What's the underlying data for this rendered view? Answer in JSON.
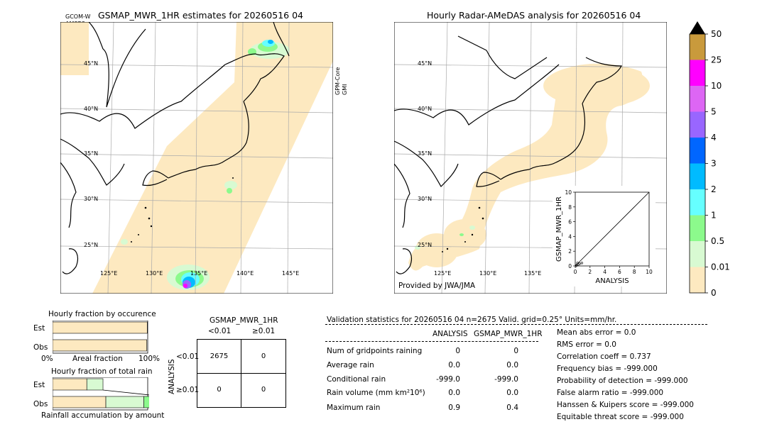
{
  "left_map": {
    "title": "GSMAP_MWR_1HR estimates for 20260516 04",
    "sat_top": "GCOM-W",
    "sat_bottom": "AMSR2",
    "side_top": "GPM-Core",
    "side_bottom": "GMI",
    "lat_labels": [
      "45°N",
      "40°N",
      "35°N",
      "30°N",
      "25°N"
    ],
    "lon_labels": [
      "125°E",
      "130°E",
      "135°E",
      "140°E",
      "145°E"
    ]
  },
  "right_map": {
    "title": "Hourly Radar-AMeDAS analysis for 20260516 04",
    "credit": "Provided by JWA/JMA",
    "lat_labels": [
      "45°N",
      "40°N",
      "35°N",
      "30°N",
      "25°N"
    ],
    "lon_labels": [
      "125°E",
      "130°E",
      "135°E"
    ]
  },
  "colorbar": {
    "labels": [
      "50",
      "25",
      "10",
      "5",
      "4",
      "3",
      "2",
      "1",
      "0.5",
      "0.01",
      "0"
    ],
    "colors": [
      "#c99a3c",
      "#ff00ff",
      "#dd66f4",
      "#9966ff",
      "#0066ff",
      "#00bbff",
      "#66ffff",
      "#8cfa8c",
      "#d8fad2",
      "#fde9c0"
    ],
    "extend_color": "#000000"
  },
  "chart_data": [
    {
      "type": "scatter",
      "title": "",
      "xlabel": "ANALYSIS",
      "ylabel": "GSMAP_MWR_1HR",
      "xlim": [
        0,
        10
      ],
      "ylim": [
        0,
        10
      ],
      "x_ticks": [
        "0",
        "2",
        "4",
        "6",
        "8",
        "10"
      ],
      "y_ticks": [
        "0",
        "2",
        "4",
        "6",
        "8",
        "10"
      ],
      "points": [
        {
          "x": 0.2,
          "y": 0.1
        },
        {
          "x": 0.4,
          "y": 0.2
        },
        {
          "x": 0.6,
          "y": 0.3
        },
        {
          "x": 0.9,
          "y": 0.4
        },
        {
          "x": 0.1,
          "y": 0.0
        },
        {
          "x": 0.3,
          "y": 0.4
        }
      ]
    },
    {
      "type": "bar",
      "title": "Hourly fraction by occurence",
      "categories": [
        "Est",
        "Obs"
      ],
      "axis_left": "0%",
      "axis_mid": "Areal fraction",
      "axis_right": "100%",
      "values": [
        0.995,
        0.99
      ]
    },
    {
      "type": "bar",
      "title": "Hourly fraction of total rain",
      "footer": "Rainfall accumulation by amount",
      "categories": [
        "Est",
        "Obs"
      ],
      "series": [
        {
          "values": [
            0.36,
            0.56
          ],
          "color": "#fde9c0"
        },
        {
          "values": [
            0.17,
            0.4
          ],
          "color": "#d8fad2"
        },
        {
          "values": [
            0.0,
            0.2
          ],
          "color": "#8cfa8c"
        }
      ]
    }
  ],
  "contingency": {
    "title": "GSMAP_MWR_1HR",
    "col_labels": [
      "<0.01",
      "≥0.01"
    ],
    "row_axis": "ANALYSIS",
    "row_labels": [
      "<0.01",
      "≥0.01"
    ],
    "cells": [
      [
        "2675",
        "0"
      ],
      [
        "0",
        "0"
      ]
    ]
  },
  "validation": {
    "header": "Validation statistics for 20260516 04  n=2675 Valid. grid=0.25° Units=mm/hr.",
    "col_a": "ANALYSIS",
    "col_b": "GSMAP_MWR_1HR",
    "rows": [
      {
        "label": "Num of gridpoints raining",
        "a": "0",
        "b": "0"
      },
      {
        "label": "Average rain",
        "a": "0.0",
        "b": "0.0"
      },
      {
        "label": "Conditional rain",
        "a": "-999.0",
        "b": "-999.0"
      },
      {
        "label": "Rain volume (mm km²10⁶)",
        "a": "0.0",
        "b": "0.0"
      },
      {
        "label": "Maximum rain",
        "a": "0.9",
        "b": "0.4"
      }
    ],
    "scores": [
      "Mean abs error =    0.0",
      "RMS error =    0.0",
      "Correlation coeff =  0.737",
      "Frequency bias = -999.000",
      "Probability of detection = -999.000",
      "False alarm ratio = -999.000",
      "Hanssen & Kuipers score = -999.000",
      "Equitable threat score = -999.000"
    ]
  }
}
